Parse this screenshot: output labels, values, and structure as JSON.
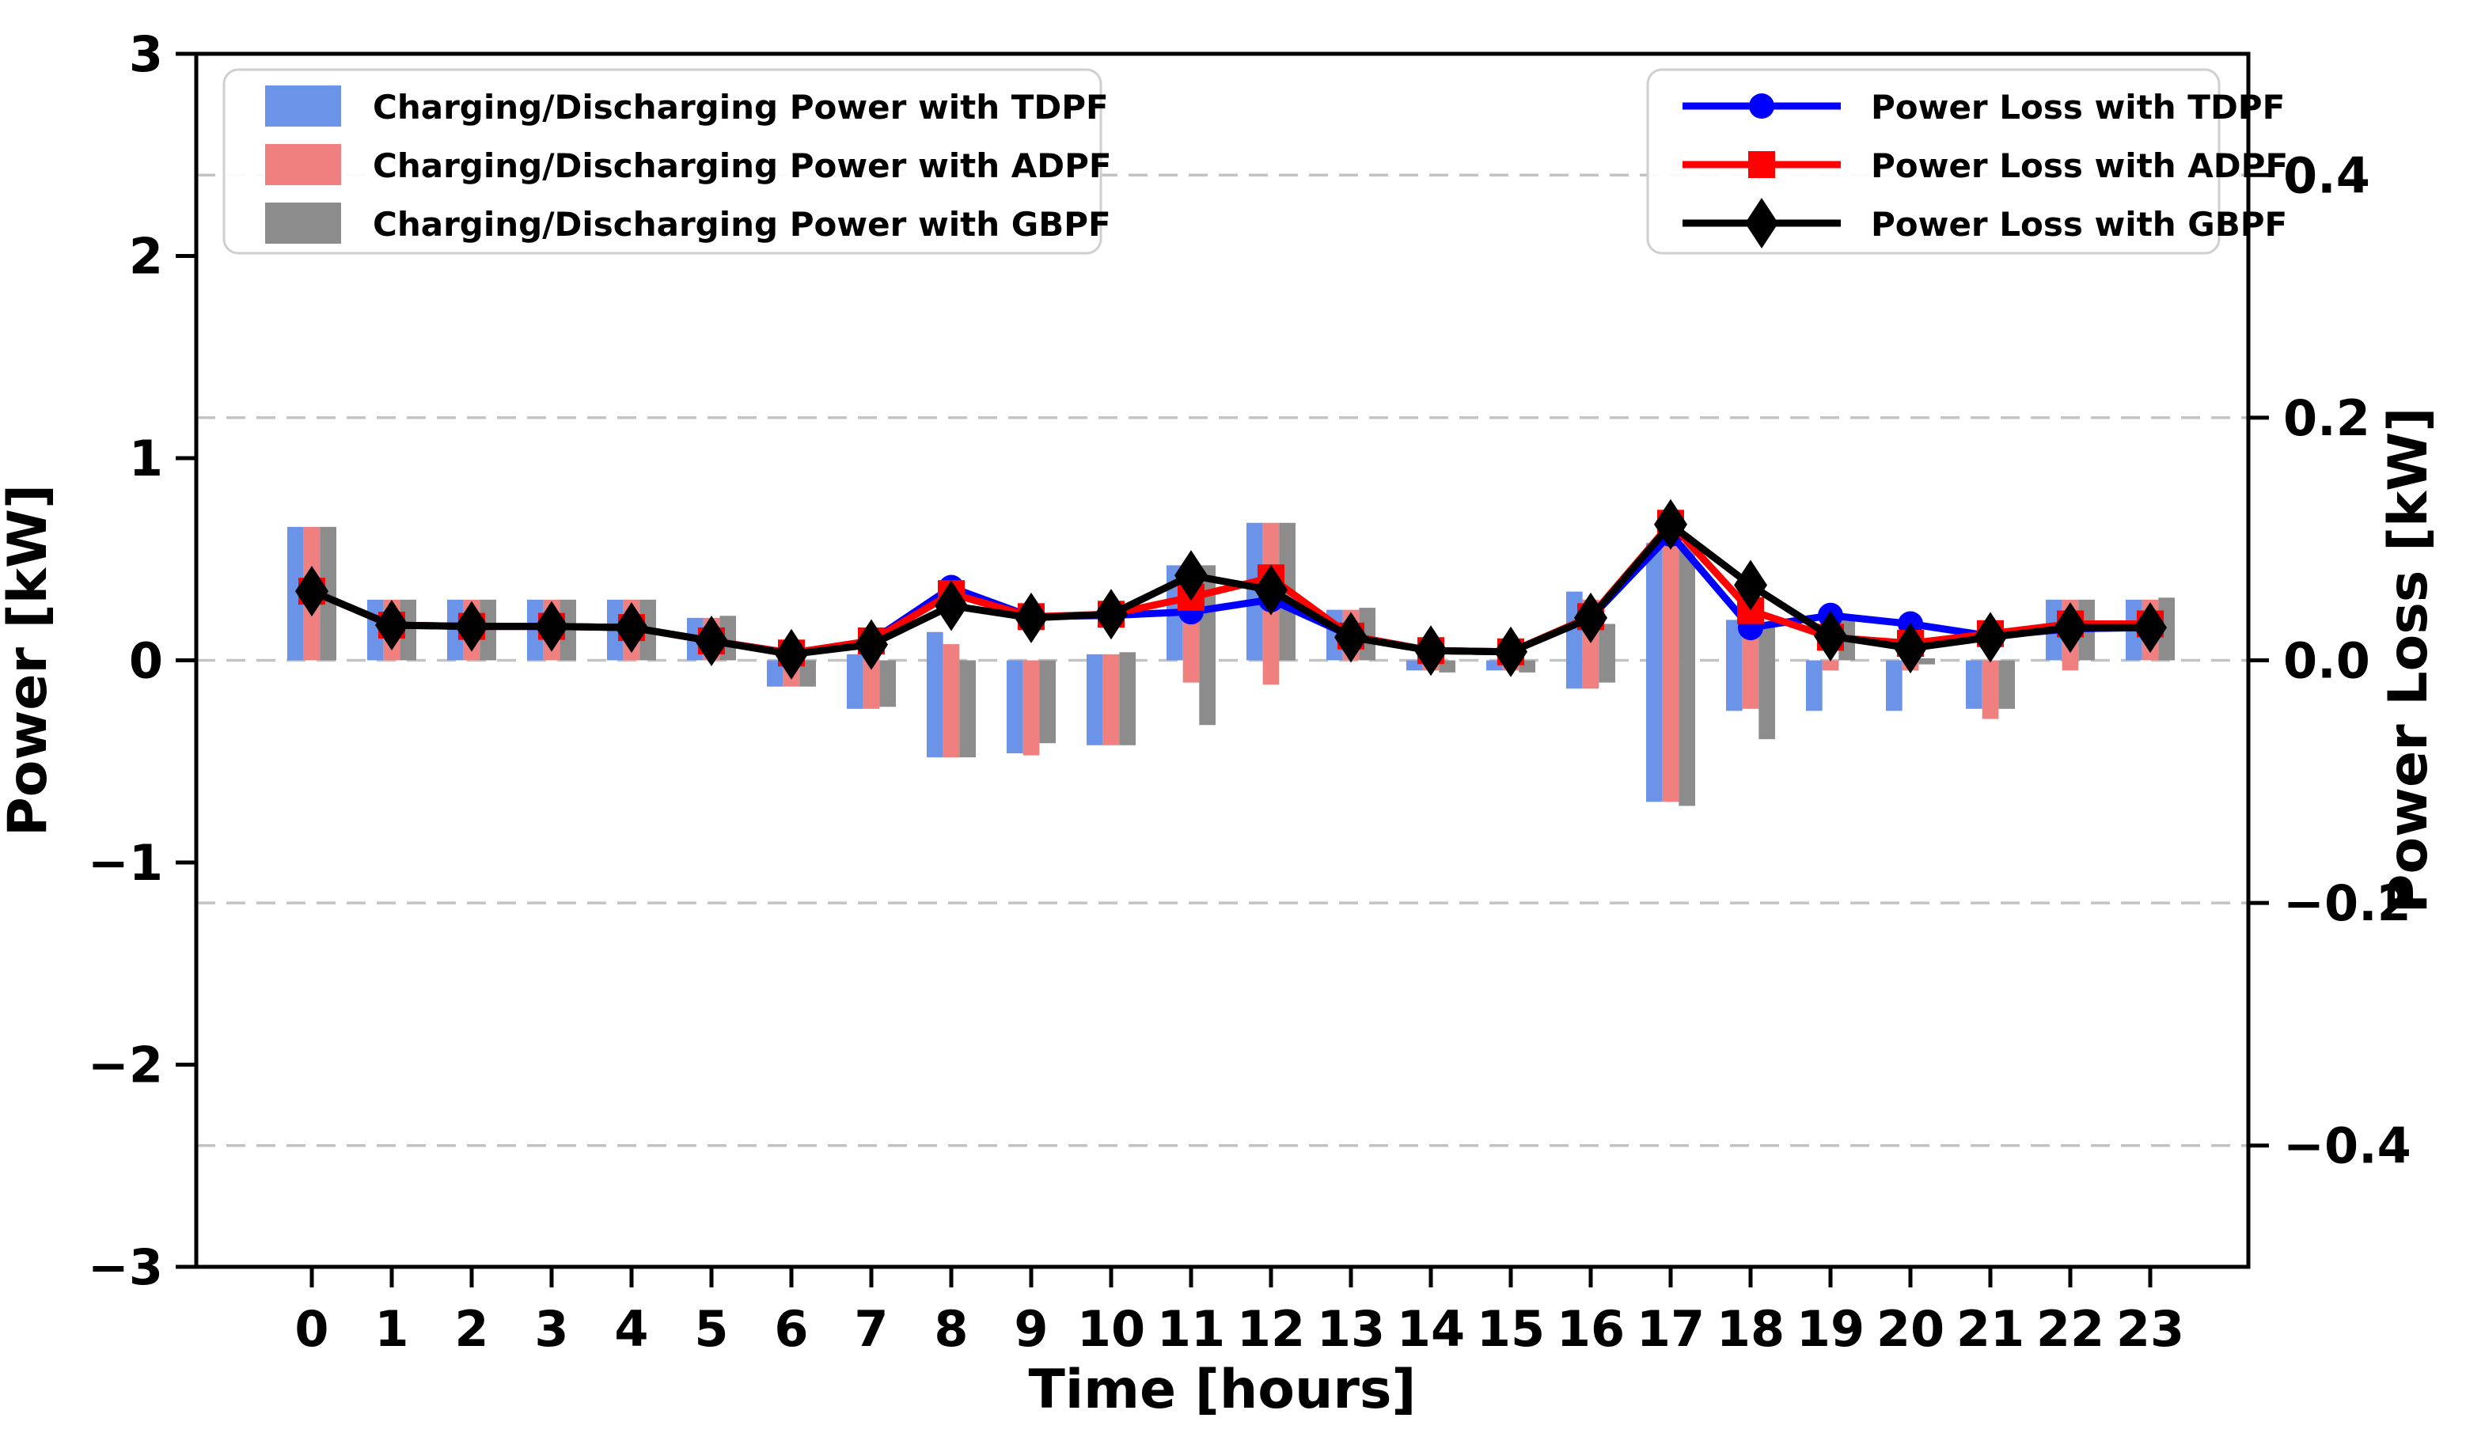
{
  "figure": {
    "background": "#ffffff"
  },
  "axes": {
    "x_label": "Time [hours]",
    "y_left_label": "Power [kW]",
    "y_right_label": "Power Loss [kW]",
    "y_left_range": [
      -3,
      3
    ],
    "y_right_range": [
      -0.5,
      0.5
    ],
    "y_left_ticks": [
      {
        "value": 3,
        "label": "3"
      },
      {
        "value": 2,
        "label": "2"
      },
      {
        "value": 1,
        "label": "1"
      },
      {
        "value": 0,
        "label": "0"
      },
      {
        "value": -1,
        "label": "−1"
      },
      {
        "value": -2,
        "label": "−2"
      },
      {
        "value": -3,
        "label": "−3"
      }
    ],
    "y_right_ticks": [
      {
        "value": 0.4,
        "label": "0.4"
      },
      {
        "value": 0.2,
        "label": "0.2"
      },
      {
        "value": 0.0,
        "label": "0.0"
      },
      {
        "value": -0.2,
        "label": "−0.2"
      },
      {
        "value": -0.4,
        "label": "−0.4"
      }
    ],
    "grid": {
      "on": true,
      "axis": "right-ticks",
      "style": "dashed",
      "color": "#c3c3c3"
    }
  },
  "legend_bars": {
    "items": [
      {
        "label": "Charging/Discharging Power with TDPF",
        "color": "#6b93e8"
      },
      {
        "label": "Charging/Discharging Power with ADPF",
        "color": "#f08080"
      },
      {
        "label": "Charging/Discharging Power with GBPF",
        "color": "#8c8c8c"
      }
    ]
  },
  "legend_lines": {
    "items": [
      {
        "label": "Power Loss with TDPF",
        "color": "#0000ff",
        "marker": "circle"
      },
      {
        "label": "Power Loss with ADPF",
        "color": "#ff0000",
        "marker": "square"
      },
      {
        "label": "Power Loss with GBPF",
        "color": "#000000",
        "marker": "diamond"
      }
    ]
  },
  "chart_data": {
    "type": "bar+line",
    "title": "",
    "xlabel": "Time [hours]",
    "ylabel_left": "Power [kW]",
    "ylabel_right": "Power Loss [kW]",
    "hours": [
      0,
      1,
      2,
      3,
      4,
      5,
      6,
      7,
      8,
      9,
      10,
      11,
      12,
      13,
      14,
      15,
      16,
      17,
      18,
      19,
      20,
      21,
      22,
      23
    ],
    "bar_series": [
      {
        "name": "Charging/Discharging Power with TDPF",
        "key": "tdpf",
        "color": "#6b93e8",
        "axis": "left",
        "ranges": [
          [
            0,
            0.66
          ],
          [
            0,
            0.3
          ],
          [
            0,
            0.3
          ],
          [
            0,
            0.3
          ],
          [
            0,
            0.3
          ],
          [
            0,
            0.21
          ],
          [
            -0.13,
            0
          ],
          [
            -0.24,
            0.03
          ],
          [
            -0.48,
            0.14
          ],
          [
            -0.46,
            0
          ],
          [
            -0.42,
            0.03
          ],
          [
            0,
            0.47
          ],
          [
            0,
            0.68
          ],
          [
            0,
            0.25
          ],
          [
            -0.05,
            0
          ],
          [
            -0.05,
            0
          ],
          [
            -0.14,
            0.34
          ],
          [
            -0.7,
            0.58
          ],
          [
            -0.25,
            0.2
          ],
          [
            -0.25,
            0
          ],
          [
            -0.25,
            0
          ],
          [
            -0.24,
            0
          ],
          [
            0,
            0.3
          ],
          [
            0,
            0.3
          ]
        ]
      },
      {
        "name": "Charging/Discharging Power with ADPF",
        "key": "adpf",
        "color": "#f08080",
        "axis": "left",
        "ranges": [
          [
            0,
            0.66
          ],
          [
            0,
            0.3
          ],
          [
            0,
            0.3
          ],
          [
            0,
            0.3
          ],
          [
            0,
            0.3
          ],
          [
            0,
            0.21
          ],
          [
            -0.13,
            0
          ],
          [
            -0.24,
            0.02
          ],
          [
            -0.48,
            0.08
          ],
          [
            -0.47,
            0
          ],
          [
            -0.42,
            0.03
          ],
          [
            -0.11,
            0.31
          ],
          [
            -0.12,
            0.68
          ],
          [
            0,
            0.25
          ],
          [
            -0.05,
            0
          ],
          [
            -0.05,
            0
          ],
          [
            -0.14,
            0.3
          ],
          [
            -0.7,
            0.58
          ],
          [
            -0.24,
            0.16
          ],
          [
            -0.05,
            0
          ],
          [
            -0.05,
            0
          ],
          [
            -0.29,
            0
          ],
          [
            -0.05,
            0.3
          ],
          [
            0,
            0.3
          ]
        ]
      },
      {
        "name": "Charging/Discharging Power with GBPF",
        "key": "gbpf",
        "color": "#8c8c8c",
        "axis": "left",
        "ranges": [
          [
            0,
            0.66
          ],
          [
            0,
            0.3
          ],
          [
            0,
            0.3
          ],
          [
            0,
            0.3
          ],
          [
            0,
            0.3
          ],
          [
            0,
            0.22
          ],
          [
            -0.13,
            0
          ],
          [
            -0.23,
            0
          ],
          [
            -0.48,
            0
          ],
          [
            -0.41,
            0
          ],
          [
            -0.42,
            0.04
          ],
          [
            -0.32,
            0.47
          ],
          [
            0,
            0.68
          ],
          [
            0,
            0.26
          ],
          [
            -0.06,
            0
          ],
          [
            -0.06,
            0
          ],
          [
            -0.11,
            0.18
          ],
          [
            -0.72,
            0.58
          ],
          [
            -0.39,
            0.18
          ],
          [
            0,
            0.2
          ],
          [
            -0.02,
            0.01
          ],
          [
            -0.24,
            0
          ],
          [
            0,
            0.3
          ],
          [
            0,
            0.31
          ]
        ]
      }
    ],
    "line_series": [
      {
        "name": "Power Loss with TDPF",
        "key": "tdpf",
        "color": "#0000ff",
        "marker": "circle",
        "axis": "right",
        "values": [
          0.057,
          0.029,
          0.028,
          0.028,
          0.027,
          0.016,
          0.006,
          0.016,
          0.06,
          0.036,
          0.037,
          0.04,
          0.05,
          0.02,
          0.008,
          0.007,
          0.035,
          0.104,
          0.027,
          0.037,
          0.03,
          0.02,
          0.026,
          0.027
        ]
      },
      {
        "name": "Power Loss with ADPF",
        "key": "adpf",
        "color": "#ff0000",
        "marker": "square",
        "axis": "right",
        "values": [
          0.057,
          0.029,
          0.028,
          0.028,
          0.027,
          0.016,
          0.006,
          0.016,
          0.055,
          0.036,
          0.038,
          0.052,
          0.068,
          0.02,
          0.008,
          0.007,
          0.036,
          0.113,
          0.041,
          0.019,
          0.014,
          0.022,
          0.03,
          0.03
        ]
      },
      {
        "name": "Power Loss with GBPF",
        "key": "gbpf",
        "color": "#000000",
        "marker": "diamond",
        "axis": "right",
        "values": [
          0.057,
          0.029,
          0.028,
          0.028,
          0.027,
          0.016,
          0.005,
          0.013,
          0.045,
          0.035,
          0.038,
          0.07,
          0.058,
          0.019,
          0.008,
          0.007,
          0.035,
          0.112,
          0.062,
          0.02,
          0.01,
          0.019,
          0.027,
          0.027
        ]
      }
    ]
  }
}
